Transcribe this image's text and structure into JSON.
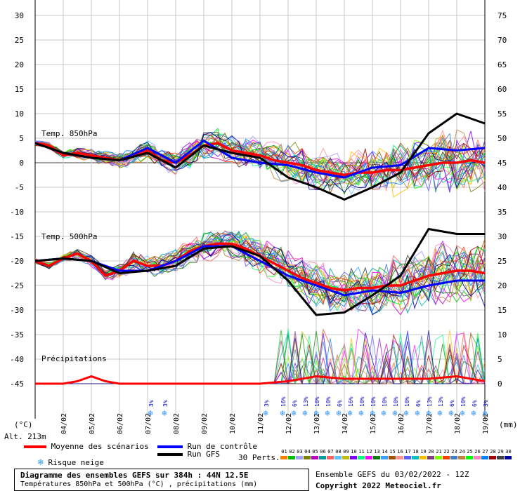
{
  "chart_data": {
    "type": "line",
    "title": "Diagramme des ensembles GEFS sur 384h : 44N 12.5E",
    "subtitle": "Températures 850hPa et 500hPa (°C) , précipitations (mm)",
    "run_info": "Ensemble GEFS du 03/02/2022 - 12Z",
    "copyright": "Copyright 2022 Meteociel.fr",
    "left_axis": {
      "unit": "(°C)",
      "ticks": [
        30,
        25,
        20,
        15,
        10,
        5,
        0,
        -5,
        -10,
        -15,
        -20,
        -25,
        -30,
        -35,
        -40,
        -45
      ],
      "ylim": [
        -45,
        30
      ]
    },
    "right_axis": {
      "unit": "(mm)",
      "ticks": [
        75,
        70,
        65,
        60,
        55,
        50,
        45,
        40,
        35,
        30,
        25,
        20,
        15,
        10,
        5,
        0
      ],
      "ylim": [
        0,
        75
      ]
    },
    "altitude": "Alt. 213m",
    "x_ticks": [
      "04/02",
      "05/02",
      "06/02",
      "07/02",
      "08/02",
      "09/02",
      "10/02",
      "11/02",
      "12/02",
      "13/02",
      "14/02",
      "15/02",
      "16/02",
      "17/02",
      "18/02",
      "19/02"
    ],
    "x_tick_days": [
      1,
      2,
      3,
      4,
      5,
      6,
      7,
      8,
      9,
      10,
      11,
      12,
      13,
      14,
      15,
      16
    ],
    "x_range_days": [
      0,
      16
    ],
    "section_labels": {
      "t850": "Temp. 850hPa",
      "t500": "Temp. 500hPa",
      "precip": "Précipitations"
    },
    "series": [
      {
        "name": "Moyenne des scénarios",
        "role": "t850",
        "color": "#ff0000",
        "x": [
          0,
          0.5,
          1,
          1.5,
          2,
          2.5,
          3,
          3.5,
          4,
          4.5,
          5,
          5.5,
          6,
          6.5,
          7,
          7.5,
          8,
          8.5,
          9,
          9.5,
          10,
          10.5,
          11,
          11.5,
          12,
          12.5,
          13,
          13.5,
          14,
          14.5,
          15,
          15.5,
          16
        ],
        "y": [
          4,
          3.5,
          1.5,
          2,
          1.5,
          1,
          0.5,
          1.5,
          2.5,
          0.5,
          0,
          1.5,
          3.5,
          4,
          2.5,
          2,
          1.5,
          0.5,
          0,
          -0.5,
          -1.5,
          -2,
          -2.5,
          -2,
          -2,
          -1.5,
          -1.5,
          -1,
          -0.5,
          0,
          0,
          0.5,
          0
        ]
      },
      {
        "name": "Moyenne des scénarios",
        "role": "t500",
        "color": "#ff0000",
        "x": [
          0,
          0.5,
          1,
          1.5,
          2,
          2.5,
          3,
          3.5,
          4,
          4.5,
          5,
          5.5,
          6,
          6.5,
          7,
          7.5,
          8,
          8.5,
          9,
          9.5,
          10,
          10.5,
          11,
          11.5,
          12,
          12.5,
          13,
          13.5,
          14,
          14.5,
          15,
          15.5,
          16
        ],
        "y": [
          -20,
          -21,
          -19.5,
          -18.5,
          -20,
          -23,
          -22,
          -20,
          -21,
          -21,
          -20,
          -18,
          -17,
          -16.5,
          -16.5,
          -17.5,
          -19,
          -20.5,
          -22,
          -23.5,
          -24.5,
          -25.5,
          -26,
          -25.5,
          -25.5,
          -25,
          -25,
          -24,
          -23,
          -22.5,
          -22,
          -22,
          -22.5
        ]
      },
      {
        "name": "Run de contrôle",
        "role": "t850",
        "color": "#0000ff",
        "x": [
          0,
          1,
          2,
          3,
          4,
          5,
          6,
          7,
          8,
          9,
          10,
          11,
          12,
          13,
          14,
          15,
          16
        ],
        "y": [
          4,
          2,
          1,
          0.5,
          3,
          0,
          4.5,
          1,
          0,
          -0.5,
          -2,
          -3,
          -1,
          -0.5,
          3,
          2.5,
          3
        ]
      },
      {
        "name": "Run de contrôle",
        "role": "t500",
        "color": "#0000ff",
        "x": [
          0,
          1,
          2,
          3,
          4,
          5,
          6,
          7,
          8,
          9,
          10,
          11,
          12,
          13,
          14,
          15,
          16
        ],
        "y": [
          -20,
          -19.5,
          -20,
          -22,
          -22,
          -20,
          -17,
          -17,
          -20,
          -23,
          -25,
          -27,
          -26,
          -26.5,
          -25,
          -24,
          -24
        ]
      },
      {
        "name": "Run GFS",
        "role": "t850",
        "color": "#000000",
        "x": [
          0,
          1,
          2,
          3,
          4,
          5,
          6,
          7,
          8,
          9,
          10,
          11,
          12,
          13,
          14,
          15,
          16
        ],
        "y": [
          4,
          2,
          1,
          0.5,
          2,
          -1,
          3.5,
          2,
          1,
          -3,
          -5,
          -7.5,
          -5,
          -2,
          6,
          10,
          8
        ]
      },
      {
        "name": "Run GFS",
        "role": "t500",
        "color": "#000000",
        "x": [
          0,
          1,
          2,
          3,
          4,
          5,
          6,
          7,
          8,
          9,
          10,
          11,
          12,
          13,
          14,
          15,
          16
        ],
        "y": [
          -20,
          -19.5,
          -20,
          -22.5,
          -22,
          -21,
          -17.5,
          -17,
          -19,
          -24,
          -31,
          -30.5,
          -27,
          -23,
          -13.5,
          -14.5,
          -14.5
        ]
      }
    ],
    "precip_mean": {
      "name": "Moyenne des scénarios",
      "color": "#ff0000",
      "x": [
        0,
        1,
        1.5,
        2,
        2.5,
        3,
        4,
        5,
        6,
        7,
        8,
        9,
        10,
        11,
        12,
        13,
        14,
        15,
        16
      ],
      "y": [
        0,
        0,
        0.5,
        1.5,
        0.5,
        0,
        0,
        0,
        0,
        0,
        0,
        0.5,
        1.5,
        1,
        1,
        1,
        1,
        1.5,
        0.5
      ]
    },
    "snow_risk": [
      {
        "x": 4.1,
        "value": "3%"
      },
      {
        "x": 4.6,
        "value": "3%"
      },
      {
        "x": 8.2,
        "value": "3%"
      },
      {
        "x": 8.8,
        "value": "16%"
      },
      {
        "x": 9.2,
        "value": "6%"
      },
      {
        "x": 9.6,
        "value": "13%"
      },
      {
        "x": 10.0,
        "value": "10%"
      },
      {
        "x": 10.4,
        "value": "10%"
      },
      {
        "x": 10.8,
        "value": "6%"
      },
      {
        "x": 11.2,
        "value": "16%"
      },
      {
        "x": 11.6,
        "value": "10%"
      },
      {
        "x": 12.0,
        "value": "10%"
      },
      {
        "x": 12.4,
        "value": "10%"
      },
      {
        "x": 12.8,
        "value": "10%"
      },
      {
        "x": 13.2,
        "value": "10%"
      },
      {
        "x": 13.6,
        "value": "6%"
      },
      {
        "x": 14.0,
        "value": "13%"
      },
      {
        "x": 14.4,
        "value": "13%"
      },
      {
        "x": 14.8,
        "value": "6%"
      },
      {
        "x": 15.2,
        "value": "10%"
      },
      {
        "x": 15.6,
        "value": "6%"
      },
      {
        "x": 16.0,
        "value": "3%"
      }
    ],
    "legend": {
      "mean": "Moyenne des scénarios",
      "control": "Run de contrôle",
      "gfs": "Run GFS",
      "snow": "Risque neige",
      "perts_label": "30 Perts.",
      "perts_numbers": [
        "01",
        "02",
        "03",
        "04",
        "05",
        "06",
        "07",
        "08",
        "09",
        "10",
        "11",
        "12",
        "13",
        "14",
        "15",
        "16",
        "17",
        "18",
        "19",
        "20",
        "21",
        "22",
        "23",
        "24",
        "25",
        "26",
        "27",
        "28",
        "29",
        "30"
      ],
      "perts_colors": [
        "#ff8000",
        "#00c000",
        "#a0a0ff",
        "#808000",
        "#c000c0",
        "#00a0a0",
        "#ff6060",
        "#60c0ff",
        "#c0c000",
        "#8000ff",
        "#00ff80",
        "#ff00ff",
        "#008000",
        "#40a0ff",
        "#a05000",
        "#ff9090",
        "#6060ff",
        "#00c0c0",
        "#ffc000",
        "#804080",
        "#80ff00",
        "#ff4000",
        "#4080c0",
        "#c08040",
        "#00ff00",
        "#ff80c0",
        "#0080ff",
        "#a00000",
        "#404040",
        "#0000a0"
      ]
    },
    "grid": true
  }
}
